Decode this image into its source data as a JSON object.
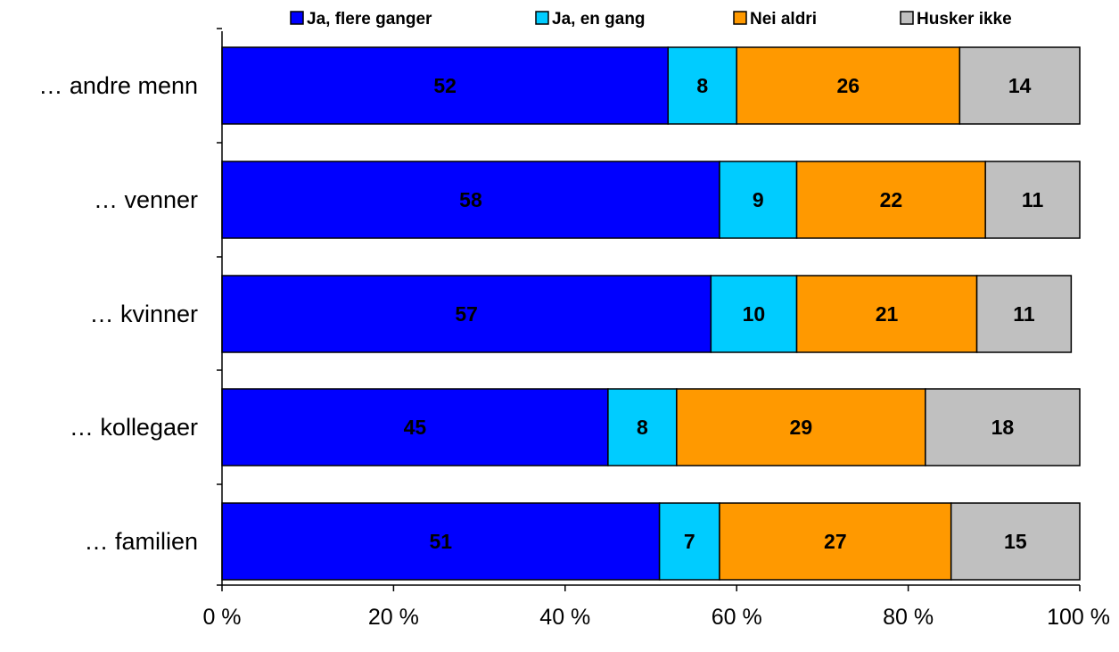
{
  "chart_data": {
    "type": "bar",
    "orientation": "horizontal",
    "stacked": true,
    "categories": [
      "… andre menn",
      "… venner",
      "… kvinner",
      "… kollegaer",
      "… familien"
    ],
    "series": [
      {
        "name": "Ja, flere ganger",
        "color": "#0000FF",
        "values": [
          52,
          58,
          57,
          45,
          51
        ]
      },
      {
        "name": "Ja, en gang",
        "color": "#00CCFF",
        "values": [
          8,
          9,
          10,
          8,
          7
        ]
      },
      {
        "name": "Nei aldri",
        "color": "#FF9900",
        "values": [
          26,
          22,
          21,
          29,
          27
        ]
      },
      {
        "name": "Husker ikke",
        "color": "#C0C0C0",
        "values": [
          14,
          11,
          11,
          18,
          15
        ]
      }
    ],
    "xlim": [
      0,
      100
    ],
    "xticks": [
      0,
      20,
      40,
      60,
      80,
      100
    ],
    "xtick_labels": [
      "0 %",
      "20 %",
      "40 %",
      "60 %",
      "80 %",
      "100 %"
    ],
    "grid": false,
    "legend_position": "top"
  }
}
